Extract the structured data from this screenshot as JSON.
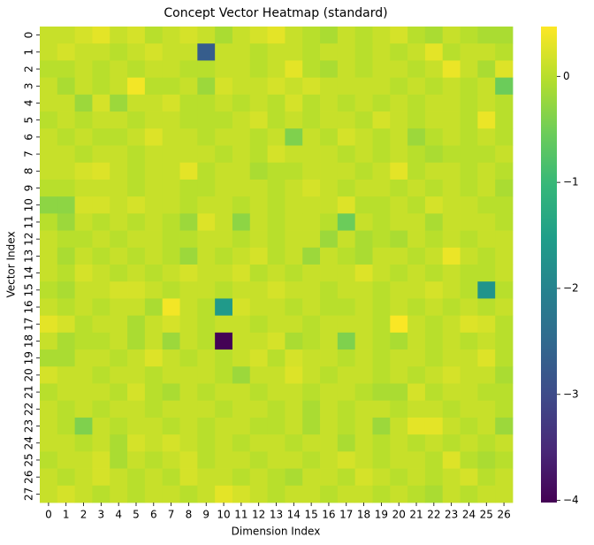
{
  "chart_data": {
    "type": "heatmap",
    "title": "Concept Vector Heatmap (standard)",
    "x_label": "Dimension Index",
    "y_label": "Vector Index",
    "x": [
      0,
      1,
      2,
      3,
      4,
      5,
      6,
      7,
      8,
      9,
      10,
      11,
      12,
      13,
      14,
      15,
      16,
      17,
      18,
      19,
      20,
      21,
      22,
      23,
      24,
      25,
      26
    ],
    "y": [
      0,
      1,
      2,
      3,
      4,
      5,
      6,
      7,
      8,
      9,
      10,
      11,
      12,
      13,
      14,
      15,
      16,
      17,
      18,
      19,
      20,
      21,
      22,
      23,
      24,
      25,
      26,
      27
    ],
    "colormap": "viridis",
    "clim": [
      -4.02,
      0.47
    ],
    "colorbar_ticks": [
      0,
      {
        "value": -1,
        "label": "−1"
      },
      {
        "value": -2,
        "label": "−2"
      },
      {
        "value": -3,
        "label": "−3"
      },
      {
        "value": -4,
        "label": "−4"
      }
    ],
    "values": [
      [
        0.1,
        0.1,
        0.2,
        0.3,
        0.1,
        0.2,
        0.0,
        0.1,
        0.2,
        0.1,
        -0.1,
        0.1,
        0.2,
        0.3,
        0.1,
        0.0,
        -0.1,
        0.1,
        0.0,
        0.1,
        0.2,
        0.0,
        -0.1,
        0.1,
        0.0,
        -0.1,
        -0.1
      ],
      [
        0.1,
        0.2,
        0.1,
        0.1,
        0.0,
        0.1,
        0.2,
        0.1,
        0.1,
        -2.7,
        0.1,
        0.1,
        0.0,
        0.1,
        0.1,
        0.0,
        0.1,
        0.1,
        0.0,
        0.1,
        0.0,
        0.1,
        0.3,
        0.0,
        0.1,
        0.1,
        0.0
      ],
      [
        0.0,
        0.0,
        0.1,
        0.0,
        0.1,
        0.0,
        0.1,
        0.1,
        0.0,
        0.0,
        0.1,
        0.1,
        0.0,
        0.1,
        0.3,
        0.0,
        -0.1,
        0.1,
        0.0,
        0.1,
        0.1,
        0.0,
        0.1,
        0.35,
        0.1,
        -0.1,
        0.25
      ],
      [
        0.1,
        -0.1,
        0.1,
        0.0,
        0.1,
        0.4,
        0.0,
        0.0,
        0.1,
        -0.2,
        0.2,
        0.1,
        0.1,
        0.2,
        0.1,
        0.2,
        0.1,
        0.1,
        0.1,
        0.1,
        0.0,
        0.1,
        0.0,
        0.1,
        0.0,
        0.1,
        -0.55
      ],
      [
        0.1,
        0.1,
        -0.2,
        0.2,
        -0.2,
        0.1,
        0.1,
        0.2,
        0.0,
        0.0,
        0.1,
        0.0,
        0.1,
        0.0,
        0.2,
        0.0,
        0.1,
        0.0,
        0.1,
        0.0,
        0.1,
        0.0,
        0.1,
        0.1,
        0.0,
        0.1,
        0.0
      ],
      [
        0.0,
        0.1,
        0.0,
        0.1,
        0.1,
        0.0,
        0.1,
        0.1,
        0.0,
        0.0,
        0.0,
        0.1,
        0.2,
        0.0,
        0.1,
        0.0,
        0.1,
        0.1,
        0.0,
        0.2,
        0.1,
        0.0,
        0.1,
        0.1,
        0.0,
        0.35,
        0.0
      ],
      [
        0.1,
        0.0,
        0.1,
        0.0,
        0.0,
        0.1,
        0.25,
        0.1,
        0.1,
        0.0,
        0.1,
        0.1,
        0.0,
        0.1,
        -0.4,
        0.1,
        0.0,
        0.2,
        0.1,
        0.0,
        0.1,
        -0.2,
        0.0,
        0.1,
        0.0,
        0.1,
        0.0
      ],
      [
        0.1,
        0.1,
        0.0,
        0.1,
        0.1,
        0.0,
        0.1,
        0.1,
        0.1,
        0.1,
        0.0,
        0.1,
        0.0,
        0.2,
        0.1,
        0.1,
        0.1,
        0.0,
        0.1,
        0.0,
        0.1,
        0.0,
        -0.1,
        0.0,
        0.0,
        0.0,
        0.1
      ],
      [
        0.1,
        0.1,
        0.2,
        0.25,
        0.1,
        0.0,
        0.1,
        0.1,
        0.3,
        0.0,
        0.1,
        0.1,
        -0.1,
        0.0,
        0.0,
        0.1,
        0.1,
        0.1,
        0.0,
        0.1,
        0.3,
        0.0,
        0.1,
        0.1,
        0.0,
        0.1,
        0.0
      ],
      [
        0.0,
        0.0,
        0.1,
        0.1,
        0.1,
        0.0,
        0.1,
        0.1,
        0.0,
        0.0,
        0.1,
        0.1,
        0.1,
        0.0,
        0.1,
        0.2,
        0.1,
        0.0,
        0.1,
        0.1,
        0.0,
        0.1,
        0.0,
        0.1,
        0.0,
        0.1,
        -0.1
      ],
      [
        -0.3,
        -0.3,
        0.2,
        0.2,
        0.1,
        0.2,
        0.1,
        0.1,
        0.0,
        0.1,
        0.1,
        0.0,
        0.1,
        0.0,
        0.1,
        0.1,
        0.1,
        0.25,
        0.0,
        0.0,
        0.1,
        0.0,
        0.2,
        0.1,
        0.1,
        0.0,
        0.0
      ],
      [
        0.0,
        -0.2,
        0.1,
        0.0,
        0.1,
        0.0,
        0.1,
        0.0,
        -0.2,
        0.25,
        0.1,
        -0.3,
        0.1,
        0.0,
        0.1,
        0.1,
        0.0,
        -0.55,
        0.1,
        0.0,
        0.1,
        0.1,
        -0.1,
        0.1,
        0.1,
        0.1,
        0.0
      ],
      [
        0.1,
        0.0,
        0.0,
        0.1,
        0.0,
        0.1,
        0.1,
        0.0,
        0.0,
        0.1,
        0.1,
        0.0,
        0.1,
        0.0,
        0.1,
        0.1,
        -0.2,
        0.1,
        -0.1,
        0.0,
        -0.1,
        0.1,
        0.0,
        0.1,
        0.0,
        0.1,
        0.1
      ],
      [
        0.1,
        -0.1,
        0.1,
        0.0,
        0.1,
        0.0,
        0.1,
        0.0,
        -0.2,
        0.1,
        0.0,
        0.1,
        0.2,
        0.0,
        0.1,
        -0.2,
        0.1,
        0.0,
        -0.1,
        0.1,
        0.1,
        0.0,
        0.1,
        0.35,
        0.1,
        0.0,
        0.1
      ],
      [
        0.1,
        0.0,
        0.2,
        0.1,
        0.0,
        0.1,
        0.0,
        0.1,
        0.2,
        0.1,
        0.1,
        0.2,
        0.0,
        0.1,
        0.0,
        0.1,
        0.1,
        0.1,
        0.25,
        0.1,
        0.0,
        0.1,
        0.0,
        0.1,
        0.0,
        0.0,
        0.1
      ],
      [
        0.0,
        -0.1,
        0.1,
        0.1,
        0.2,
        0.2,
        0.1,
        0.0,
        0.1,
        0.1,
        0.0,
        0.1,
        0.1,
        0.2,
        0.1,
        0.1,
        0.0,
        0.1,
        0.1,
        0.0,
        0.1,
        0.1,
        0.2,
        0.1,
        0.0,
        -1.7,
        0.0
      ],
      [
        0.1,
        0.0,
        0.1,
        0.0,
        0.1,
        0.1,
        -0.1,
        0.4,
        0.1,
        0.0,
        -1.6,
        0.2,
        0.1,
        0.1,
        0.0,
        0.1,
        0.0,
        0.0,
        0.1,
        0.0,
        0.1,
        0.0,
        0.1,
        0.0,
        0.1,
        0.0,
        0.1
      ],
      [
        0.3,
        0.2,
        0.0,
        0.1,
        0.1,
        -0.1,
        0.1,
        0.2,
        0.1,
        0.0,
        0.1,
        0.1,
        0.0,
        0.1,
        0.1,
        0.0,
        0.1,
        0.1,
        0.1,
        0.0,
        0.45,
        0.1,
        0.0,
        0.1,
        0.25,
        0.2,
        0.0
      ],
      [
        0.1,
        -0.1,
        0.0,
        0.0,
        0.1,
        -0.1,
        0.1,
        -0.2,
        0.1,
        0.0,
        -4.0,
        0.1,
        0.1,
        0.2,
        -0.1,
        0.0,
        0.1,
        -0.4,
        0.1,
        0.0,
        -0.1,
        0.1,
        0.0,
        0.1,
        0.0,
        0.1,
        0.0
      ],
      [
        -0.1,
        -0.1,
        0.1,
        0.1,
        0.0,
        0.1,
        0.25,
        0.1,
        0.0,
        0.1,
        0.0,
        0.1,
        0.2,
        0.0,
        0.2,
        0.1,
        0.1,
        0.0,
        0.1,
        0.0,
        0.1,
        0.1,
        0.0,
        0.1,
        0.1,
        0.25,
        0.0
      ],
      [
        0.2,
        0.1,
        0.1,
        0.0,
        0.1,
        0.1,
        0.0,
        0.1,
        0.1,
        0.1,
        0.0,
        -0.2,
        0.1,
        0.1,
        0.25,
        0.1,
        0.0,
        0.1,
        0.1,
        0.0,
        0.1,
        0.0,
        0.1,
        0.2,
        0.1,
        0.1,
        -0.1
      ],
      [
        0.0,
        0.1,
        0.1,
        0.1,
        0.0,
        0.2,
        0.0,
        -0.1,
        0.1,
        0.0,
        0.1,
        0.1,
        0.0,
        0.1,
        0.1,
        0.0,
        0.1,
        0.1,
        0.0,
        -0.1,
        -0.1,
        0.2,
        0.0,
        0.1,
        0.1,
        0.0,
        0.0
      ],
      [
        0.1,
        0.0,
        0.1,
        0.0,
        0.1,
        0.1,
        0.0,
        0.1,
        0.1,
        0.1,
        0.0,
        0.1,
        0.1,
        0.0,
        0.1,
        -0.1,
        0.1,
        0.0,
        0.1,
        0.1,
        0.0,
        0.1,
        0.1,
        0.0,
        0.1,
        0.1,
        0.0
      ],
      [
        0.1,
        0.0,
        -0.4,
        0.1,
        0.0,
        0.1,
        0.1,
        0.0,
        0.1,
        0.0,
        0.1,
        0.1,
        0.0,
        0.0,
        0.1,
        -0.1,
        0.1,
        0.0,
        0.1,
        -0.2,
        0.1,
        0.3,
        0.3,
        0.1,
        0.0,
        0.1,
        -0.2
      ],
      [
        0.1,
        0.1,
        0.0,
        0.1,
        -0.1,
        0.2,
        0.1,
        0.2,
        0.1,
        0.0,
        0.1,
        0.0,
        0.1,
        0.1,
        0.0,
        0.1,
        0.1,
        -0.1,
        0.1,
        0.0,
        0.1,
        0.0,
        0.1,
        0.0,
        0.1,
        0.0,
        0.1
      ],
      [
        0.0,
        0.1,
        0.1,
        0.2,
        -0.1,
        0.1,
        0.0,
        0.1,
        0.2,
        0.0,
        0.1,
        0.1,
        0.0,
        0.1,
        0.1,
        0.0,
        0.1,
        0.2,
        0.1,
        0.0,
        0.1,
        0.1,
        0.0,
        0.25,
        0.0,
        -0.1,
        0.0
      ],
      [
        0.1,
        0.0,
        0.1,
        0.2,
        0.1,
        0.0,
        0.1,
        0.0,
        0.2,
        0.1,
        0.1,
        0.0,
        0.1,
        0.0,
        -0.1,
        0.1,
        0.1,
        0.0,
        0.2,
        0.1,
        0.0,
        0.1,
        0.0,
        0.1,
        0.2,
        0.0,
        0.1
      ],
      [
        0.1,
        0.2,
        0.1,
        0.0,
        0.1,
        0.0,
        0.1,
        0.1,
        0.0,
        0.1,
        0.3,
        0.2,
        0.1,
        0.0,
        0.1,
        0.1,
        0.0,
        0.1,
        0.1,
        0.0,
        0.1,
        0.0,
        -0.1,
        0.1,
        0.0,
        0.1,
        0.1
      ]
    ]
  }
}
